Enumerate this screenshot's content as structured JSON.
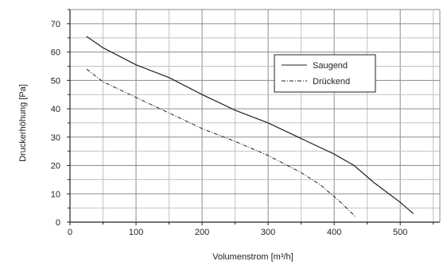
{
  "chart_data": {
    "type": "line",
    "xlabel": "Volumenstrom   [m³/h]",
    "ylabel": "Druckerhöhung   [Pa]",
    "xlim": [
      0,
      560
    ],
    "ylim": [
      0,
      75
    ],
    "x_ticks": [
      "0",
      "100",
      "200",
      "300",
      "400",
      "500"
    ],
    "y_ticks": [
      "0",
      "10",
      "20",
      "30",
      "40",
      "50",
      "60",
      "70"
    ],
    "grid": true,
    "legend_position": "top-right",
    "series": [
      {
        "name": "Saugend",
        "style": "solid",
        "color": "#222222",
        "x": [
          25,
          50,
          100,
          150,
          200,
          250,
          300,
          350,
          400,
          430,
          460,
          500,
          520
        ],
        "y": [
          65.5,
          61.5,
          55.5,
          51,
          45,
          39.5,
          35,
          29.5,
          24,
          20,
          14,
          7,
          3
        ]
      },
      {
        "name": "Drückend",
        "style": "dashdot",
        "color": "#222222",
        "x": [
          25,
          50,
          100,
          150,
          200,
          250,
          300,
          350,
          380,
          410,
          432
        ],
        "y": [
          54,
          49.5,
          44,
          38.5,
          33,
          28.5,
          23.5,
          17.5,
          13,
          7,
          2
        ]
      }
    ]
  }
}
